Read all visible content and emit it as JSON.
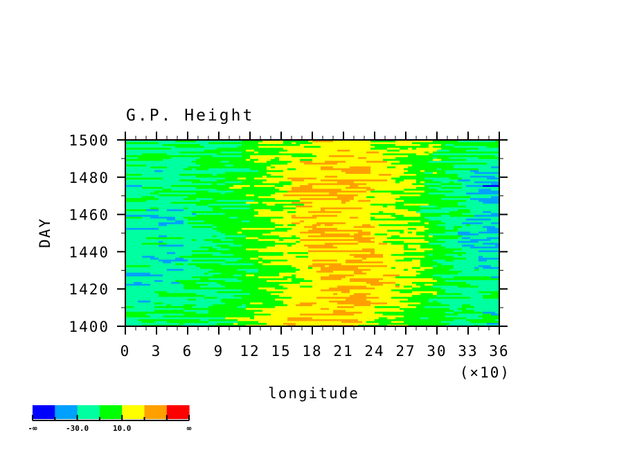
{
  "chart_data": {
    "type": "heatmap",
    "title": "G.P. Height",
    "xlabel": "longitude",
    "ylabel": "DAY",
    "x_scale_note": "(×10)",
    "xlim": [
      0,
      36
    ],
    "ylim": [
      1400,
      1500
    ],
    "x_ticks": [
      "0",
      "3",
      "6",
      "9",
      "12",
      "15",
      "18",
      "21",
      "24",
      "27",
      "30",
      "33",
      "36"
    ],
    "y_ticks": [
      "1400",
      "1420",
      "1440",
      "1460",
      "1480",
      "1500"
    ],
    "x_centers": [
      1.5,
      4.5,
      7.5,
      10.5,
      13.5,
      16.5,
      19.5,
      22.5,
      25.5,
      28.5,
      31.5,
      34.5
    ],
    "y_centers": [
      1405,
      1415,
      1425,
      1435,
      1445,
      1455,
      1465,
      1475,
      1485,
      1495
    ],
    "values": [
      [
        -15,
        -10,
        -5,
        0,
        15,
        25,
        30,
        20,
        10,
        0,
        -10,
        -20
      ],
      [
        -20,
        -15,
        -10,
        -5,
        5,
        15,
        25,
        30,
        20,
        5,
        -10,
        -15
      ],
      [
        -25,
        -20,
        -10,
        -5,
        0,
        10,
        25,
        30,
        25,
        10,
        -10,
        -20
      ],
      [
        -20,
        -25,
        -10,
        -5,
        5,
        15,
        30,
        35,
        20,
        5,
        -10,
        -25
      ],
      [
        -15,
        -20,
        -10,
        0,
        10,
        20,
        35,
        30,
        20,
        5,
        -15,
        -35
      ],
      [
        -20,
        -25,
        -15,
        -5,
        5,
        20,
        30,
        25,
        15,
        5,
        -15,
        -30
      ],
      [
        -15,
        -20,
        -15,
        -5,
        5,
        20,
        30,
        20,
        10,
        0,
        -10,
        -25
      ],
      [
        -20,
        -15,
        -10,
        0,
        10,
        25,
        30,
        25,
        15,
        5,
        -15,
        -40
      ],
      [
        -15,
        -20,
        -10,
        -5,
        5,
        20,
        30,
        30,
        20,
        5,
        -10,
        -20
      ],
      [
        -10,
        -10,
        -5,
        -5,
        5,
        15,
        20,
        20,
        15,
        5,
        -5,
        -15
      ]
    ],
    "levels": [
      -50,
      -30,
      -10,
      10,
      30,
      50
    ],
    "colors": [
      "#0000ff",
      "#00a0ff",
      "#00ffa0",
      "#00ff00",
      "#ffff00",
      "#ffa000",
      "#ff0000"
    ],
    "colorbar": {
      "labels": [
        "-∞",
        "-30.0",
        "10.0",
        "∞"
      ],
      "placement": "bottom-left"
    },
    "grid": false
  }
}
